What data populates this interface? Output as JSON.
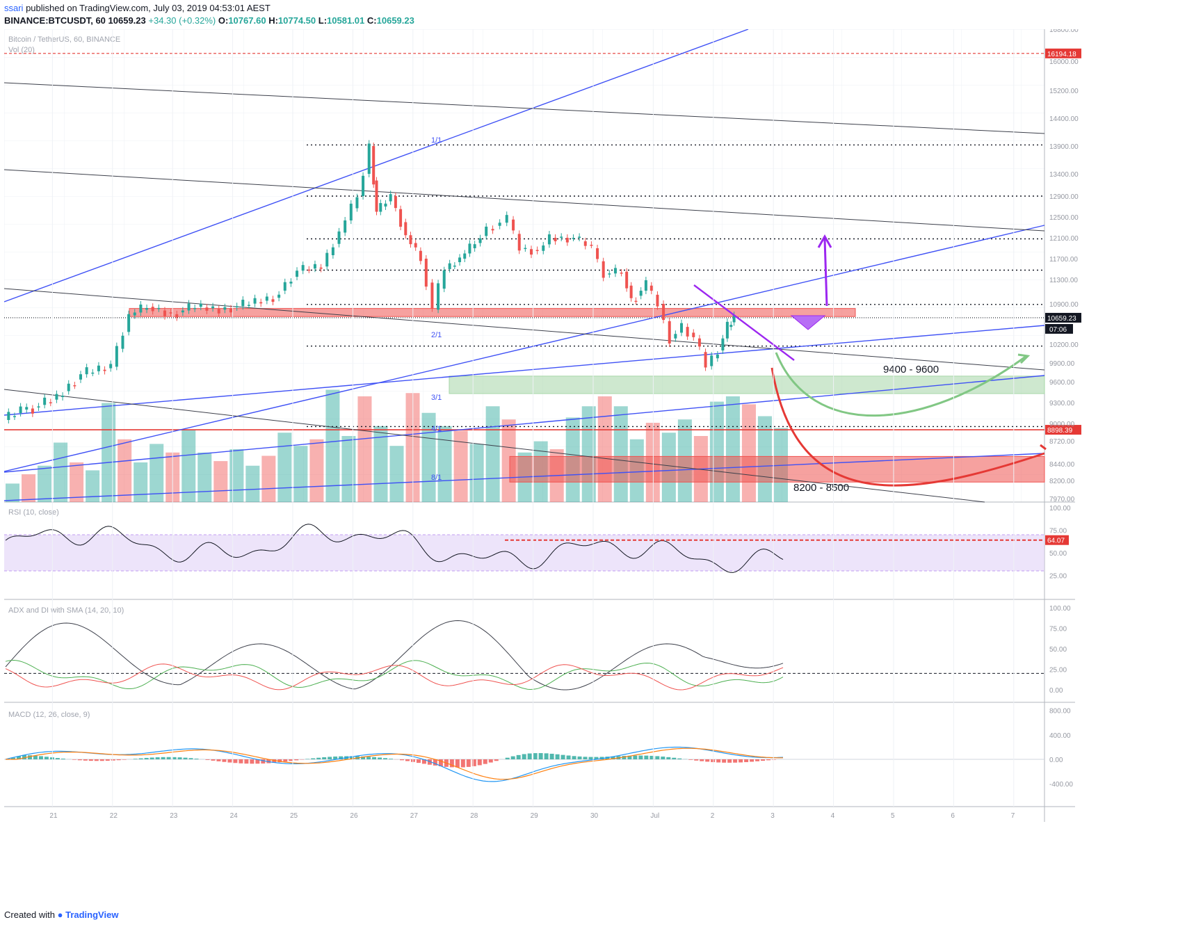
{
  "header": {
    "user": "ssari",
    "published_text": " published on TradingView.com, July 03, 2019 04:53:01 AEST",
    "symbol": "BINANCE:BTCUSDT, 60",
    "last_price": "10659.23",
    "change": "+34.30 (+0.32%)",
    "open_label": "O:",
    "open": "10767.60",
    "high_label": "H:",
    "high": "10774.50",
    "low_label": "L:",
    "low": "10581.01",
    "close_label": "C:",
    "close": "10659.23"
  },
  "colors": {
    "up": "#26a69a",
    "down": "#ef5350",
    "rsi": "#131722",
    "rsi_band": "#e1d2f7",
    "trend_blue": "#3f51f5",
    "resistance_zone": "#ef5350",
    "support_zone": "#a5d6a7",
    "target_red": "#e53935",
    "target_green": "#81c784",
    "arrow_purple": "#9c27f0"
  },
  "chart_data": {
    "type": "candlestick",
    "title": "Bitcoin / TetherUS, 60, BINANCE",
    "volume_label": "Vol (20)",
    "x_axis_labels": [
      "21",
      "22",
      "23",
      "24",
      "25",
      "26",
      "27",
      "28",
      "29",
      "30",
      "Jul",
      "2",
      "3",
      "4",
      "5",
      "6",
      "7"
    ],
    "price_axis": {
      "ticks": [
        16800,
        16000,
        15200,
        14400,
        13900,
        13400,
        12900,
        12500,
        12100,
        11700,
        11300,
        10900,
        10200,
        9900,
        9600,
        9300,
        9000,
        8720,
        8440,
        8200,
        7970
      ],
      "tick_labels": [
        "16800.00",
        "16000.00",
        "15200.00",
        "14400.00",
        "13900.00",
        "13400.00",
        "12900.00",
        "12500.00",
        "12100.00",
        "11700.00",
        "11300.00",
        "10900.00",
        "10200.00",
        "9900.00",
        "9600.00",
        "9300.00",
        "9000.00",
        "8720.00",
        "8440.00",
        "8200.00",
        "7970.00"
      ]
    },
    "price_series": [
      {
        "x": 0.0,
        "y": 9050
      },
      {
        "x": 0.3,
        "y": 9200
      },
      {
        "x": 0.5,
        "y": 9230
      },
      {
        "x": 0.9,
        "y": 9380
      },
      {
        "x": 1.3,
        "y": 9720
      },
      {
        "x": 1.8,
        "y": 9840
      },
      {
        "x": 2.1,
        "y": 10700
      },
      {
        "x": 2.4,
        "y": 10850
      },
      {
        "x": 2.8,
        "y": 10720
      },
      {
        "x": 3.2,
        "y": 10850
      },
      {
        "x": 3.6,
        "y": 10800
      },
      {
        "x": 4.0,
        "y": 10880
      },
      {
        "x": 4.5,
        "y": 11000
      },
      {
        "x": 4.9,
        "y": 11470
      },
      {
        "x": 5.3,
        "y": 11550
      },
      {
        "x": 5.6,
        "y": 12200
      },
      {
        "x": 5.9,
        "y": 12900
      },
      {
        "x": 6.1,
        "y": 13900
      },
      {
        "x": 6.2,
        "y": 12600
      },
      {
        "x": 6.45,
        "y": 12900
      },
      {
        "x": 6.7,
        "y": 12150
      },
      {
        "x": 6.95,
        "y": 11700
      },
      {
        "x": 7.15,
        "y": 10800
      },
      {
        "x": 7.35,
        "y": 11500
      },
      {
        "x": 7.6,
        "y": 11700
      },
      {
        "x": 7.85,
        "y": 12000
      },
      {
        "x": 8.05,
        "y": 12270
      },
      {
        "x": 8.4,
        "y": 12450
      },
      {
        "x": 8.6,
        "y": 11900
      },
      {
        "x": 8.9,
        "y": 11850
      },
      {
        "x": 9.1,
        "y": 12100
      },
      {
        "x": 9.5,
        "y": 12100
      },
      {
        "x": 9.8,
        "y": 11900
      },
      {
        "x": 10.0,
        "y": 11400
      },
      {
        "x": 10.3,
        "y": 11450
      },
      {
        "x": 10.45,
        "y": 10950
      },
      {
        "x": 10.7,
        "y": 11200
      },
      {
        "x": 10.9,
        "y": 10900
      },
      {
        "x": 11.1,
        "y": 10300
      },
      {
        "x": 11.3,
        "y": 10500
      },
      {
        "x": 11.5,
        "y": 10300
      },
      {
        "x": 11.7,
        "y": 9850
      },
      {
        "x": 11.9,
        "y": 10100
      },
      {
        "x": 12.05,
        "y": 10500
      },
      {
        "x": 12.15,
        "y": 10660
      }
    ],
    "volume_series": [
      28,
      42,
      55,
      90,
      60,
      48,
      150,
      95,
      60,
      88,
      75,
      110,
      75,
      62,
      80,
      55,
      70,
      105,
      85,
      95,
      170,
      100,
      160,
      115,
      85,
      165,
      135,
      115,
      108,
      88,
      145,
      125,
      75,
      92,
      80,
      128,
      145,
      160,
      145,
      95,
      120,
      105,
      125,
      100,
      152,
      160,
      148,
      130,
      112
    ],
    "horizontal_levels": [
      {
        "price": 16194.18,
        "label": "16194.18",
        "color": "#e53935",
        "style": "dashed"
      },
      {
        "price": 10659.23,
        "label": "10659.23",
        "color": "#131722",
        "style": "dotted"
      },
      {
        "price": 8898.39,
        "label": "8898.39",
        "color": "#e53935",
        "style": "solid"
      }
    ],
    "countdown_label": "07:06",
    "fib_levels": [
      13920,
      12900,
      12080,
      11480,
      10890,
      10170,
      8950
    ],
    "gann_labels": [
      "1/1",
      "2/1",
      "3/1",
      "4/1",
      "8/1"
    ],
    "zones": [
      {
        "label": "",
        "from": 10680,
        "to": 10820,
        "color": "#ef5350"
      },
      {
        "label": "9400 - 9600",
        "from": 9430,
        "to": 9690,
        "color": "#a5d6a7"
      },
      {
        "label": "8200 - 8500",
        "from": 8180,
        "to": 8530,
        "color": "#ef5350"
      }
    ],
    "rsi": {
      "label": "RSI (10, close)",
      "current": "64.07",
      "ticks": [
        "100.00",
        "75.00",
        "50.00",
        "25.00"
      ],
      "upper_band": 70,
      "lower_band": 30
    },
    "adx": {
      "label": "ADX and DI with SMA (14, 20, 10)",
      "ticks": [
        "100.00",
        "75.00",
        "50.00",
        "25.00",
        "0.00"
      ],
      "threshold": 20
    },
    "macd": {
      "label": "MACD (12, 26, close, 9)",
      "ticks": [
        "800.00",
        "400.00",
        "0.00",
        "-400.00"
      ]
    }
  },
  "footer": {
    "prefix": "Created with",
    "brand": "TradingView"
  }
}
